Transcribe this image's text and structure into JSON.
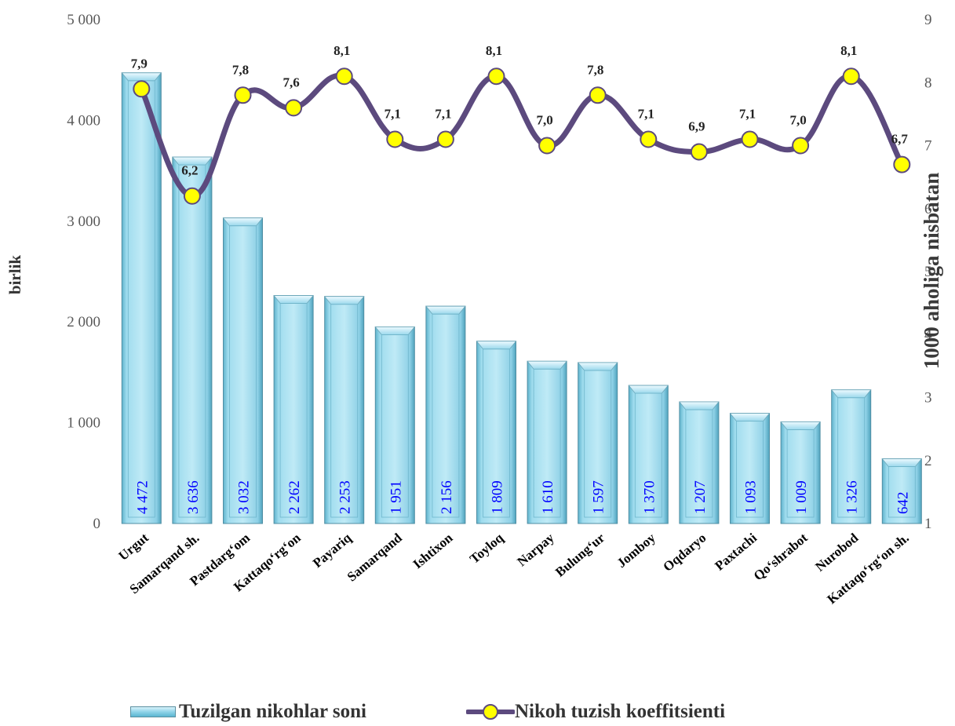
{
  "chart_data": {
    "type": "bar+line",
    "categories": [
      "Urgut",
      "Samarqand sh.",
      "Pastdarg‘om",
      "Kattaqo‘rg‘on",
      "Payariq",
      "Samarqand",
      "Ishtixon",
      "Toyloq",
      "Narpay",
      "Bulung‘ur",
      "Jomboy",
      "Oqdaryo",
      "Paxtachi",
      "Qo‘shrabot",
      "Nurobod",
      "Kattaqo‘rg‘on sh."
    ],
    "series": [
      {
        "name": "Tuzilgan nikohlar soni",
        "type": "bar",
        "axis": "left",
        "values": [
          4472,
          3636,
          3032,
          2262,
          2253,
          1951,
          2156,
          1809,
          1610,
          1597,
          1370,
          1207,
          1093,
          1009,
          1326,
          642
        ],
        "labels": [
          "4 472",
          "3 636",
          "3 032",
          "2 262",
          "2 253",
          "1 951",
          "2 156",
          "1 809",
          "1 610",
          "1 597",
          "1 370",
          "1 207",
          "1 093",
          "1 009",
          "1 326",
          "642"
        ],
        "color": "#8fd3e8"
      },
      {
        "name": "Nikoh tuzish koeffitsienti",
        "type": "line",
        "axis": "right",
        "values": [
          7.9,
          6.2,
          7.8,
          7.6,
          8.1,
          7.1,
          7.1,
          8.1,
          7.0,
          7.8,
          7.1,
          6.9,
          7.1,
          7.0,
          8.1,
          6.7
        ],
        "labels": [
          "7,9",
          "6,2",
          "7,8",
          "7,6",
          "8,1",
          "7,1",
          "7,1",
          "8,1",
          "7,0",
          "7,8",
          "7,1",
          "6,9",
          "7,1",
          "7,0",
          "8,1",
          "6,7"
        ],
        "color": "#5c4a7e",
        "marker_color": "#ffff00"
      }
    ],
    "ylabel_left": "birlik",
    "ylabel_right": "1000 aholiga nisbatan",
    "ylim_left": [
      0,
      5000
    ],
    "ylim_right": [
      1,
      9
    ],
    "yticks_left": [
      "0",
      "1 000",
      "2 000",
      "3 000",
      "4 000",
      "5 000"
    ],
    "yticks_right": [
      "1",
      "2",
      "3",
      "4",
      "5",
      "6",
      "7",
      "8",
      "9"
    ],
    "legend_position": "bottom",
    "grid": false
  }
}
